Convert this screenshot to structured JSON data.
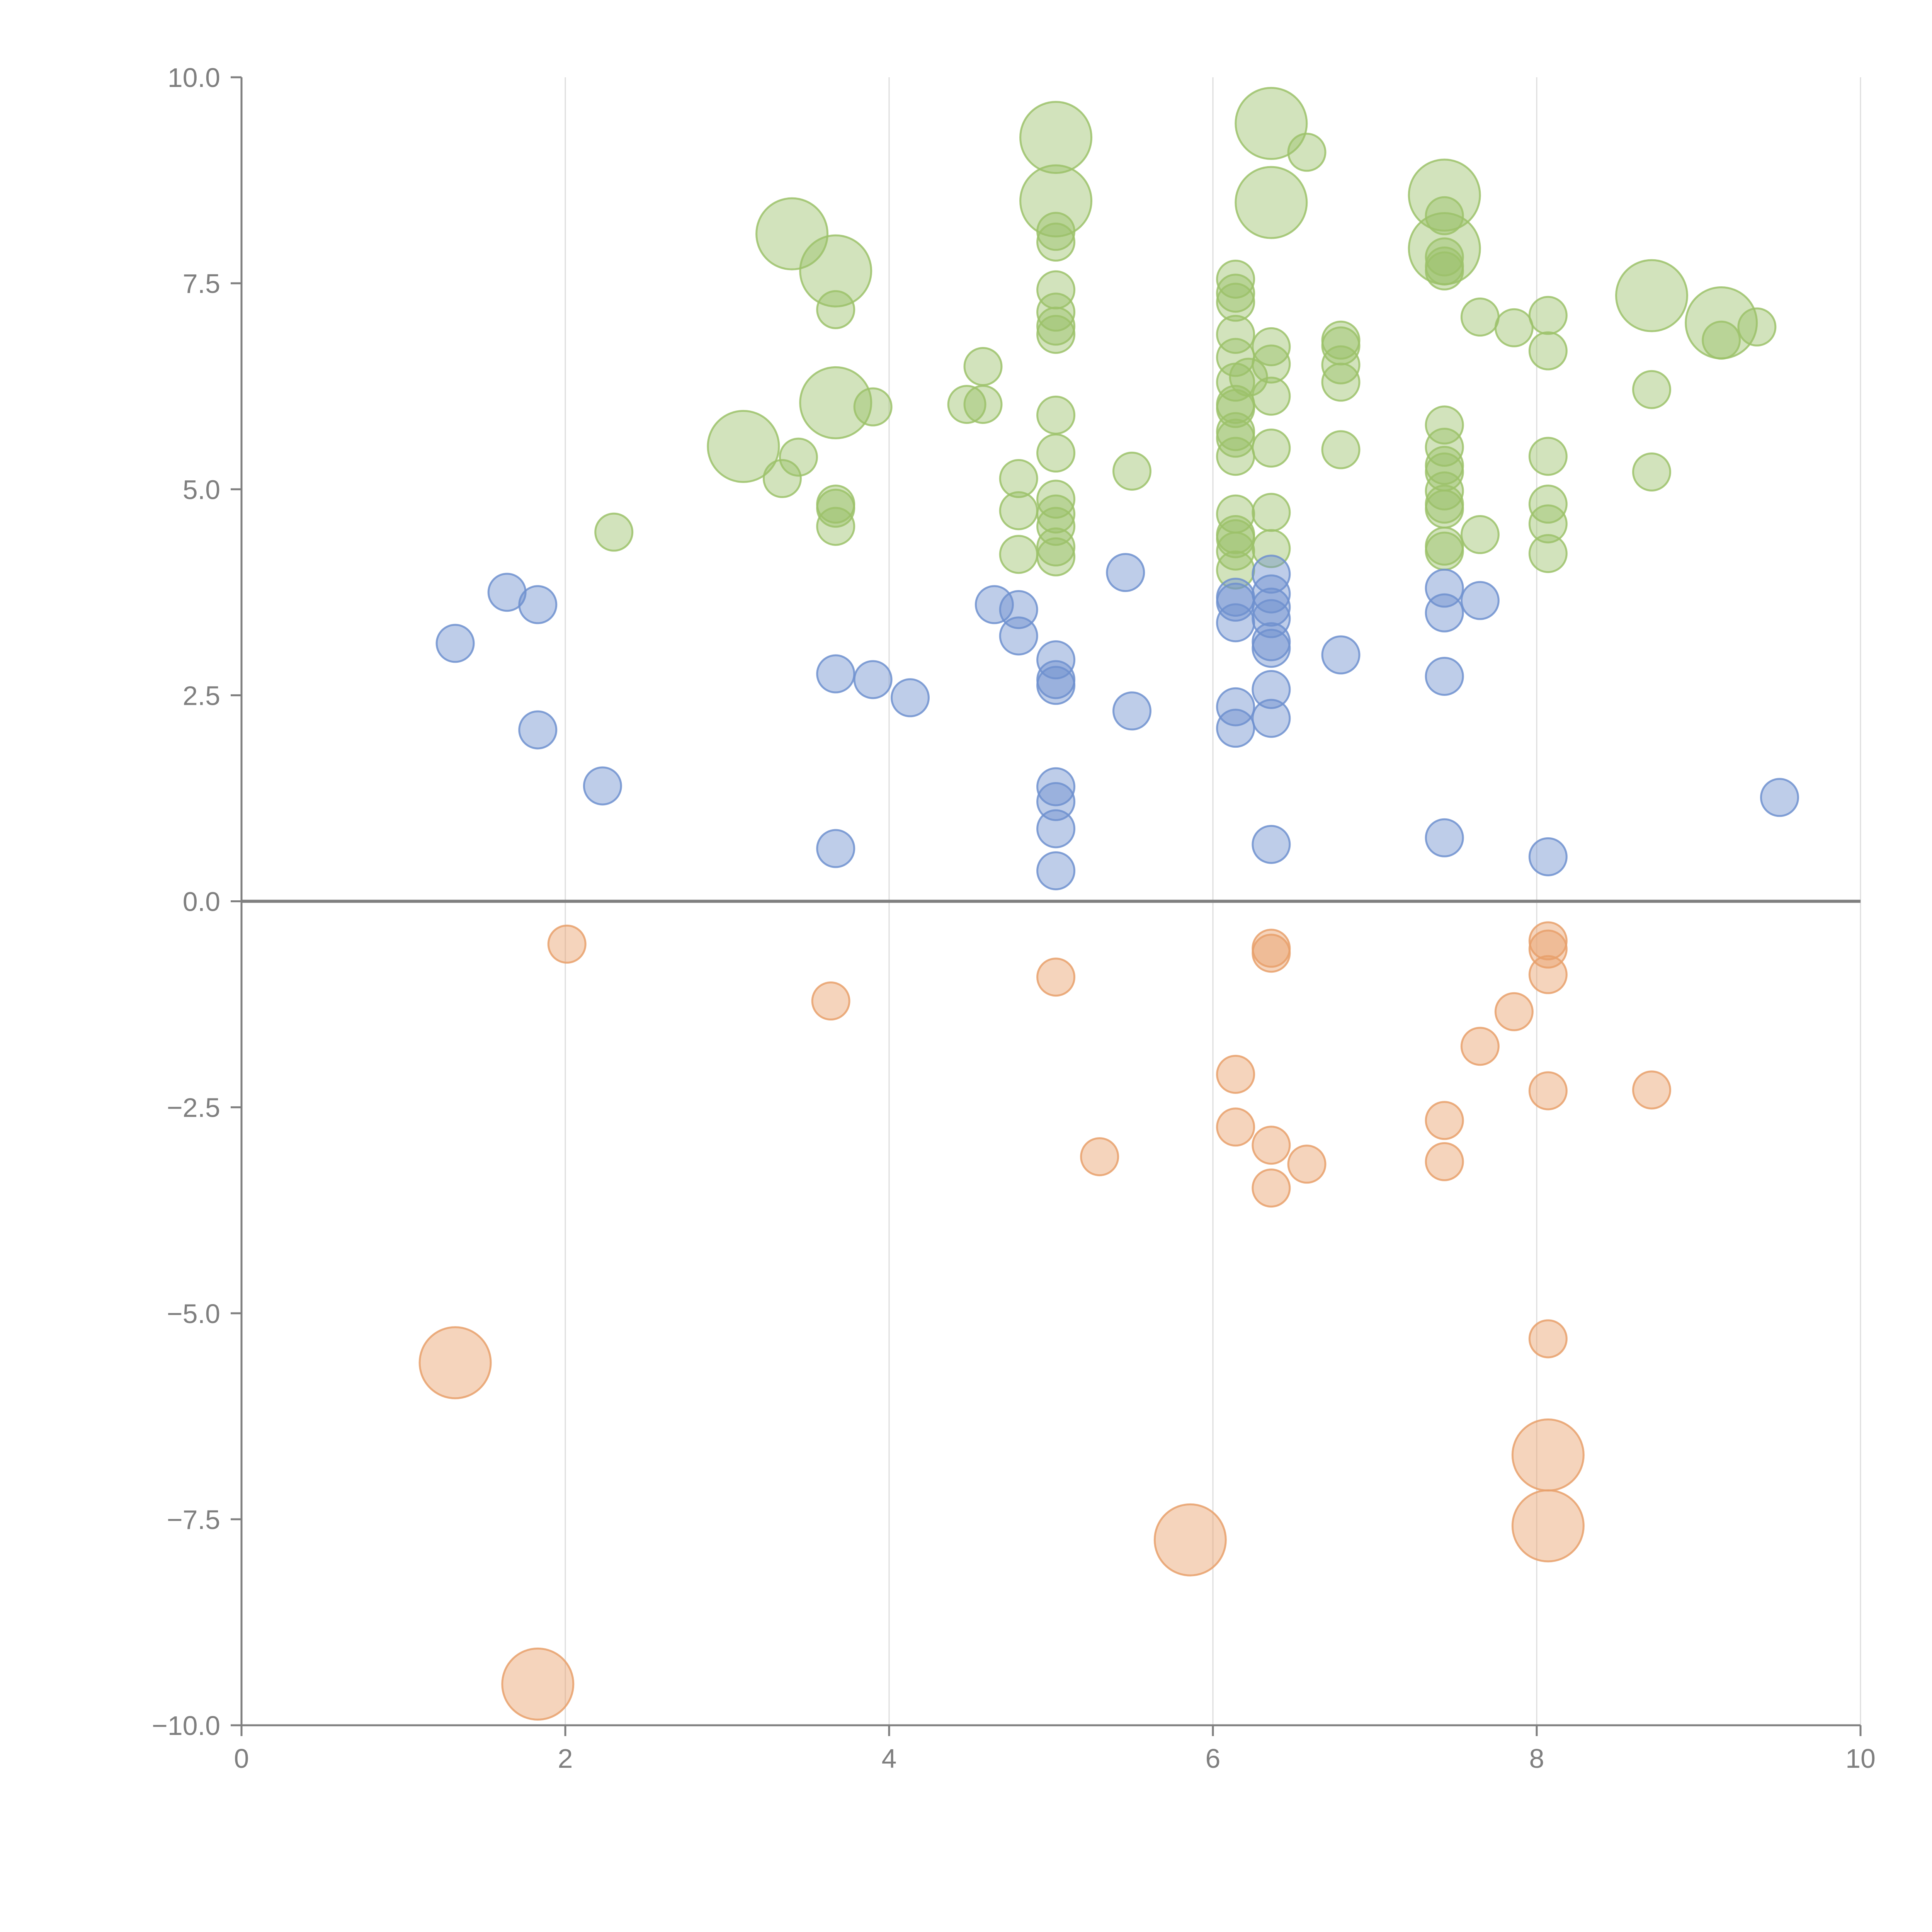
{
  "chart_data": {
    "type": "scatter",
    "title": "",
    "xlabel": "",
    "ylabel": "",
    "xlim": [
      0,
      10
    ],
    "ylim": [
      -10,
      10
    ],
    "x_ticks": [
      0,
      2,
      4,
      6,
      8,
      10
    ],
    "y_ticks": [
      -10,
      -7.5,
      -5,
      -2.5,
      0,
      2.5,
      5,
      7.5,
      10
    ],
    "x_tick_labels": [
      "0",
      "2",
      "4",
      "6",
      "8",
      "10"
    ],
    "y_tick_labels": [
      "−10.0",
      "−7.5",
      "−5.0",
      "−2.5",
      "0.0",
      "2.5",
      "5.0",
      "7.5",
      "10.0"
    ],
    "vertical_gridlines": true,
    "zero_line": true,
    "series": [
      {
        "name": "green",
        "color": "#9cc26a",
        "points": [
          [
            3.4,
            8.1,
            3
          ],
          [
            3.67,
            7.65,
            3
          ],
          [
            3.1,
            5.52,
            3
          ],
          [
            3.67,
            6.05,
            3
          ],
          [
            5.03,
            9.27,
            3
          ],
          [
            5.03,
            8.5,
            3
          ],
          [
            6.36,
            9.44,
            3
          ],
          [
            6.36,
            8.48,
            3
          ],
          [
            7.43,
            8.57,
            3
          ],
          [
            7.43,
            7.92,
            3
          ],
          [
            8.71,
            7.35,
            3
          ],
          [
            9.14,
            7.02,
            3
          ],
          [
            2.3,
            4.48,
            1
          ],
          [
            3.34,
            5.13,
            1
          ],
          [
            3.44,
            5.39,
            1
          ],
          [
            3.67,
            7.18,
            1
          ],
          [
            3.67,
            4.82,
            1
          ],
          [
            3.67,
            4.77,
            1
          ],
          [
            3.67,
            4.55,
            1
          ],
          [
            3.9,
            6.0,
            1
          ],
          [
            4.48,
            6.03,
            1
          ],
          [
            4.58,
            6.49,
            1
          ],
          [
            4.58,
            6.03,
            1
          ],
          [
            4.8,
            5.13,
            1
          ],
          [
            4.8,
            4.74,
            1
          ],
          [
            4.8,
            4.21,
            1
          ],
          [
            5.03,
            8.13,
            1
          ],
          [
            5.03,
            8.0,
            1
          ],
          [
            5.03,
            7.42,
            1
          ],
          [
            5.03,
            7.15,
            1
          ],
          [
            5.03,
            6.98,
            1
          ],
          [
            5.03,
            6.88,
            1
          ],
          [
            5.03,
            5.9,
            1
          ],
          [
            5.03,
            5.44,
            1
          ],
          [
            5.03,
            4.88,
            1
          ],
          [
            5.03,
            4.7,
            1
          ],
          [
            5.03,
            4.55,
            1
          ],
          [
            5.03,
            4.3,
            1
          ],
          [
            5.03,
            4.18,
            1
          ],
          [
            5.5,
            5.22,
            1
          ],
          [
            6.14,
            7.55,
            1
          ],
          [
            6.14,
            7.38,
            1
          ],
          [
            6.14,
            7.27,
            1
          ],
          [
            6.14,
            6.88,
            1
          ],
          [
            6.14,
            6.6,
            1
          ],
          [
            6.14,
            6.3,
            1
          ],
          [
            6.14,
            6.03,
            1
          ],
          [
            6.14,
            5.98,
            1
          ],
          [
            6.14,
            5.7,
            1
          ],
          [
            6.14,
            5.62,
            1
          ],
          [
            6.14,
            5.4,
            1
          ],
          [
            6.14,
            4.7,
            1
          ],
          [
            6.14,
            4.45,
            1
          ],
          [
            6.14,
            4.4,
            1
          ],
          [
            6.14,
            4.25,
            1
          ],
          [
            6.14,
            4.02,
            1
          ],
          [
            6.22,
            6.36,
            1
          ],
          [
            6.36,
            6.73,
            1
          ],
          [
            6.36,
            6.52,
            1
          ],
          [
            6.36,
            6.13,
            1
          ],
          [
            6.36,
            5.5,
            1
          ],
          [
            6.36,
            4.72,
            1
          ],
          [
            6.36,
            4.28,
            1
          ],
          [
            6.58,
            9.09,
            1
          ],
          [
            6.79,
            6.81,
            1
          ],
          [
            6.79,
            6.74,
            1
          ],
          [
            6.79,
            6.51,
            1
          ],
          [
            6.79,
            6.3,
            1
          ],
          [
            6.79,
            5.48,
            1
          ],
          [
            7.43,
            8.32,
            1
          ],
          [
            7.43,
            7.82,
            1
          ],
          [
            7.43,
            7.71,
            1
          ],
          [
            7.43,
            7.65,
            1
          ],
          [
            7.43,
            5.78,
            1
          ],
          [
            7.43,
            5.51,
            1
          ],
          [
            7.43,
            5.29,
            1
          ],
          [
            7.43,
            5.21,
            1
          ],
          [
            7.43,
            4.98,
            1
          ],
          [
            7.43,
            4.82,
            1
          ],
          [
            7.43,
            4.76,
            1
          ],
          [
            7.43,
            4.31,
            1
          ],
          [
            7.43,
            4.25,
            1
          ],
          [
            7.65,
            7.09,
            1
          ],
          [
            7.65,
            4.45,
            1
          ],
          [
            7.86,
            6.96,
            1
          ],
          [
            8.07,
            7.11,
            1
          ],
          [
            8.07,
            6.68,
            1
          ],
          [
            8.07,
            5.4,
            1
          ],
          [
            8.07,
            4.82,
            1
          ],
          [
            8.07,
            4.58,
            1
          ],
          [
            8.07,
            4.22,
            1
          ],
          [
            8.71,
            6.21,
            1
          ],
          [
            8.71,
            5.21,
            1
          ],
          [
            9.14,
            6.81,
            1
          ],
          [
            9.36,
            6.97,
            1
          ]
        ]
      },
      {
        "name": "blue",
        "color": "#6f91cf",
        "points": [
          [
            1.32,
            3.13,
            1
          ],
          [
            1.64,
            3.75,
            1
          ],
          [
            1.83,
            3.6,
            1
          ],
          [
            1.83,
            2.08,
            1
          ],
          [
            2.23,
            1.4,
            1
          ],
          [
            3.67,
            2.76,
            1
          ],
          [
            3.67,
            0.64,
            1
          ],
          [
            3.9,
            2.69,
            1
          ],
          [
            4.13,
            2.47,
            1
          ],
          [
            4.65,
            3.6,
            1
          ],
          [
            4.8,
            3.54,
            1
          ],
          [
            4.8,
            3.22,
            1
          ],
          [
            5.03,
            2.93,
            1
          ],
          [
            5.03,
            2.69,
            1
          ],
          [
            5.03,
            2.62,
            1
          ],
          [
            5.03,
            1.39,
            1
          ],
          [
            5.03,
            1.21,
            1
          ],
          [
            5.03,
            0.88,
            1
          ],
          [
            5.03,
            0.37,
            1
          ],
          [
            5.46,
            3.99,
            1
          ],
          [
            5.5,
            2.31,
            1
          ],
          [
            6.14,
            3.69,
            1
          ],
          [
            6.14,
            3.63,
            1
          ],
          [
            6.14,
            3.38,
            1
          ],
          [
            6.14,
            2.36,
            1
          ],
          [
            6.14,
            2.1,
            1
          ],
          [
            6.36,
            3.97,
            1
          ],
          [
            6.36,
            3.73,
            1
          ],
          [
            6.36,
            3.57,
            1
          ],
          [
            6.36,
            3.43,
            1
          ],
          [
            6.36,
            3.15,
            1
          ],
          [
            6.36,
            3.07,
            1
          ],
          [
            6.36,
            2.57,
            1
          ],
          [
            6.36,
            2.22,
            1
          ],
          [
            6.36,
            0.69,
            1
          ],
          [
            6.79,
            2.99,
            1
          ],
          [
            7.43,
            3.8,
            1
          ],
          [
            7.43,
            3.5,
            1
          ],
          [
            7.43,
            2.73,
            1
          ],
          [
            7.43,
            0.77,
            1
          ],
          [
            7.65,
            3.65,
            1
          ],
          [
            8.07,
            0.54,
            1
          ],
          [
            9.5,
            1.26,
            1
          ]
        ]
      },
      {
        "name": "orange",
        "color": "#e8a06b",
        "points": [
          [
            1.32,
            -5.6,
            3
          ],
          [
            1.83,
            -9.5,
            3
          ],
          [
            5.86,
            -7.75,
            3
          ],
          [
            8.07,
            -6.72,
            3
          ],
          [
            8.07,
            -7.58,
            3
          ],
          [
            2.01,
            -0.52,
            1
          ],
          [
            3.64,
            -1.21,
            1
          ],
          [
            5.03,
            -0.92,
            1
          ],
          [
            5.3,
            -3.1,
            1
          ],
          [
            6.14,
            -2.1,
            1
          ],
          [
            6.14,
            -2.74,
            1
          ],
          [
            6.36,
            -0.57,
            1
          ],
          [
            6.36,
            -0.63,
            1
          ],
          [
            6.36,
            -2.96,
            1
          ],
          [
            6.36,
            -3.48,
            1
          ],
          [
            6.58,
            -3.19,
            1
          ],
          [
            7.43,
            -2.66,
            1
          ],
          [
            7.43,
            -3.16,
            1
          ],
          [
            7.65,
            -1.76,
            1
          ],
          [
            7.86,
            -1.34,
            1
          ],
          [
            8.07,
            -0.48,
            1
          ],
          [
            8.07,
            -0.58,
            1
          ],
          [
            8.07,
            -0.89,
            1
          ],
          [
            8.07,
            -2.3,
            1
          ],
          [
            8.07,
            -5.31,
            1
          ],
          [
            8.71,
            -2.29,
            1
          ]
        ]
      }
    ]
  }
}
